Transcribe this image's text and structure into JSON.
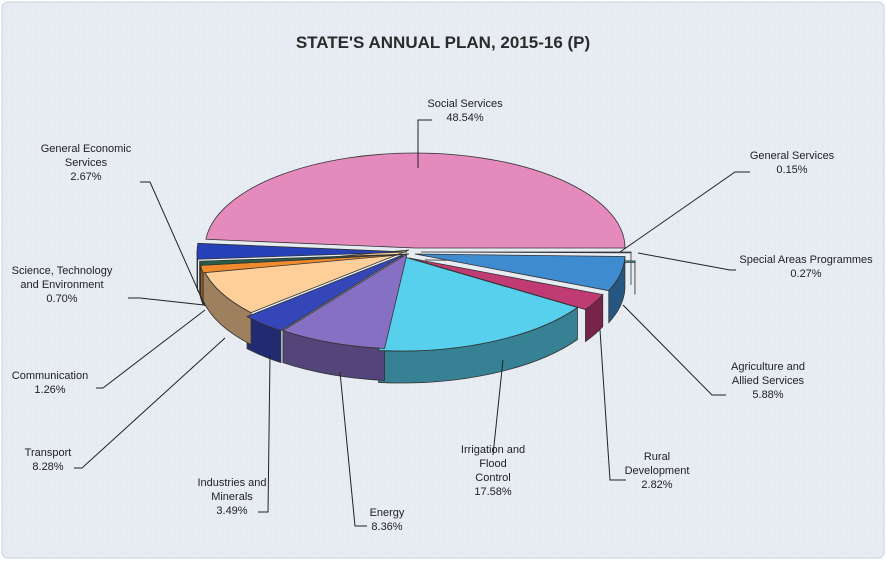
{
  "chart_data": {
    "type": "pie",
    "title": "STATE'S ANNUAL PLAN, 2015-16 (P)",
    "style": "3d-exploded",
    "slices": [
      {
        "label": [
          "General Services"
        ],
        "value": 0.15,
        "value_text": "0.15%",
        "color": "#4a7fa8"
      },
      {
        "label": [
          "Special Areas Programmes"
        ],
        "value": 0.27,
        "value_text": "0.27%",
        "color": "#2f9e93"
      },
      {
        "label": [
          "Agriculture and",
          "Allied Services"
        ],
        "value": 5.88,
        "value_text": "5.88%",
        "color": "#3f8bcf"
      },
      {
        "label": [
          "Rural",
          "Development"
        ],
        "value": 2.82,
        "value_text": "2.82%",
        "color": "#c03a74"
      },
      {
        "label": [
          "Irrigation and",
          "Flood",
          "Control"
        ],
        "value": 17.58,
        "value_text": "17.58%",
        "color": "#57d0ee"
      },
      {
        "label": [
          "Energy"
        ],
        "value": 8.36,
        "value_text": "8.36%",
        "color": "#8670c3"
      },
      {
        "label": [
          "Industries and",
          "Minerals"
        ],
        "value": 3.49,
        "value_text": "3.49%",
        "color": "#3546b8"
      },
      {
        "label": [
          "Transport"
        ],
        "value": 8.28,
        "value_text": "8.28%",
        "color": "#ffcf9a"
      },
      {
        "label": [
          "Communication"
        ],
        "value": 1.26,
        "value_text": "1.26%",
        "color": "#f08a2c"
      },
      {
        "label": [
          "Science, Technology",
          "and Environment"
        ],
        "value": 0.7,
        "value_text": "0.70%",
        "color": "#2a5d46"
      },
      {
        "label": [
          "General Economic",
          "Services"
        ],
        "value": 2.67,
        "value_text": "2.67%",
        "color": "#2640b8"
      },
      {
        "label": [
          "Social Services"
        ],
        "value": 48.54,
        "value_text": "48.54%",
        "color": "#e48abc"
      }
    ]
  }
}
